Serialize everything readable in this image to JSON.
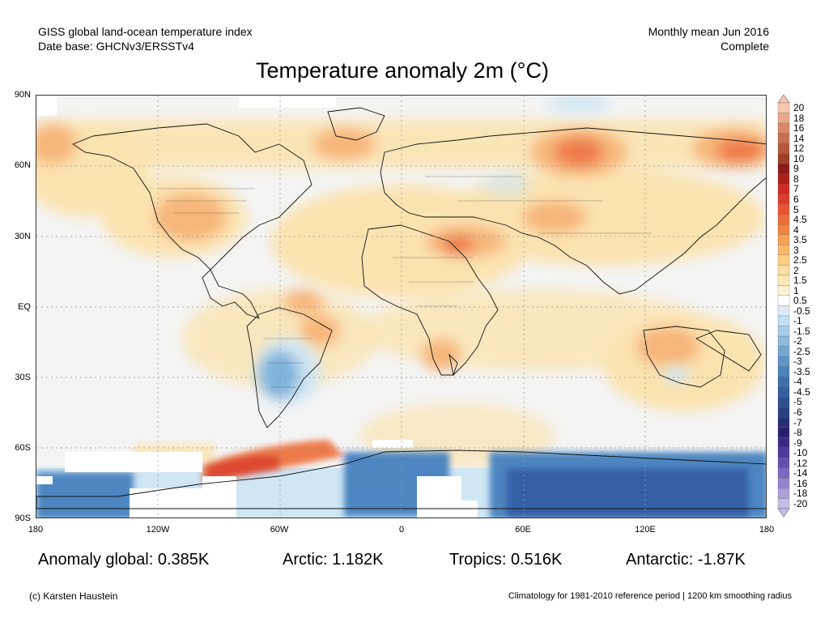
{
  "header": {
    "left_line1": "GISS global land-ocean temperature index",
    "left_line2": "Date base: GHCNv3/ERSSTv4",
    "right_line1": "Monthly mean Jun 2016",
    "right_line2": "Complete"
  },
  "title": "Temperature anomaly 2m (°C)",
  "map": {
    "lat_labels": [
      "90N",
      "60N",
      "30N",
      "EQ",
      "30S",
      "60S",
      "90S"
    ],
    "lon_labels": [
      "180",
      "120W",
      "60W",
      "0",
      "60E",
      "120E",
      "180"
    ],
    "colors": {
      "background": "#f4f4f4",
      "warm_light": "#fbe3b0",
      "warm_mid": "#f7b67a",
      "warm_strong": "#ee7a4a",
      "warm_hot": "#dd4a33",
      "cold_light": "#cfe6f5",
      "cold_mid": "#7fb3dc",
      "cold_strong": "#4d86c1",
      "cold_deep": "#3560a8",
      "missing": "#ffffff"
    }
  },
  "colorbar": {
    "labels": [
      "20",
      "18",
      "16",
      "14",
      "12",
      "10",
      "9",
      "8",
      "7",
      "6",
      "5",
      "4.5",
      "4",
      "3.5",
      "3",
      "2.5",
      "2",
      "1.5",
      "1",
      "0.5",
      "-0.5",
      "-1",
      "-1.5",
      "-2",
      "-2.5",
      "-3",
      "-3.5",
      "-4",
      "-4.5",
      "-5",
      "-6",
      "-7",
      "-8",
      "-9",
      "-10",
      "-12",
      "-14",
      "-16",
      "-18",
      "-20"
    ],
    "colors": [
      "#f5c7b0",
      "#eba88a",
      "#d98a6a",
      "#c8704f",
      "#b5583a",
      "#a04028",
      "#8b1a1a",
      "#b01e1e",
      "#cc2a22",
      "#e03a28",
      "#ec5330",
      "#f06c3a",
      "#f3843f",
      "#f6a052",
      "#f8b868",
      "#fbd085",
      "#fcdfa0",
      "#fdeab8",
      "#fef3d0",
      "#ffffff",
      "#dcebf6",
      "#c3def2",
      "#a8cce8",
      "#8dbadd",
      "#74a8d3",
      "#5f95c7",
      "#4d82ba",
      "#406fac",
      "#355f9d",
      "#2c4f8e",
      "#283f80",
      "#262e73",
      "#2a2270",
      "#3b2a85",
      "#4d3a9a",
      "#6350ae",
      "#7a68c0",
      "#9384d0",
      "#ab9fdc",
      "#c6bde8"
    ]
  },
  "stats": {
    "global": "Anomaly global: 0.385K",
    "arctic": "Arctic: 1.182K",
    "tropics": "Tropics: 0.516K",
    "antarctic": "Antarctic: -1.87K"
  },
  "footer": {
    "credit": "(c) Karsten Haustein",
    "note": "Climatology for 1981-2010 reference period | 1200 km smoothing radius"
  }
}
